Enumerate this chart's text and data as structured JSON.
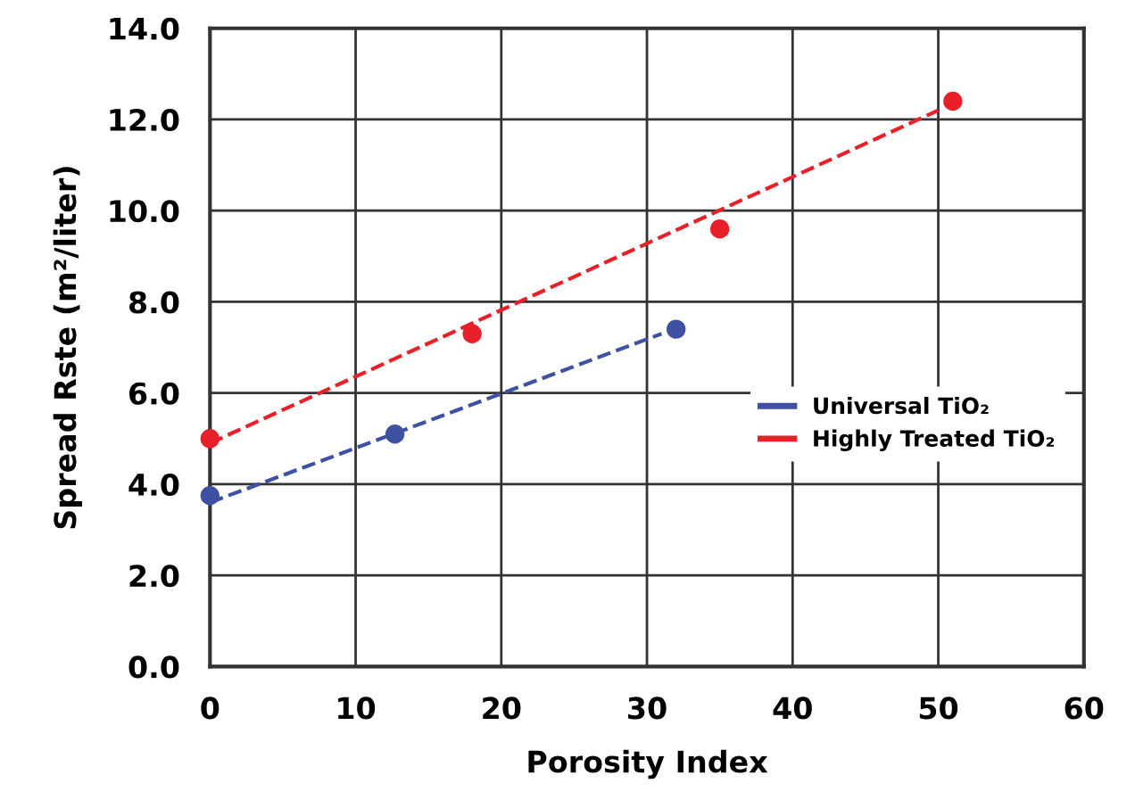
{
  "chart_data": {
    "type": "scatter",
    "xlabel": "Porosity Index",
    "ylabel": "Spread Rste (m²/liter)",
    "xlim": [
      0,
      60
    ],
    "xticks": [
      0,
      10,
      20,
      30,
      40,
      50,
      60
    ],
    "ylim": [
      0,
      14
    ],
    "yticks": [
      {
        "value": 0,
        "label": "0.0"
      },
      {
        "value": 2,
        "label": "2.0"
      },
      {
        "value": 4,
        "label": "4.0"
      },
      {
        "value": 6,
        "label": "6.0"
      },
      {
        "value": 8,
        "label": "8.0"
      },
      {
        "value": 10,
        "label": "10.0"
      },
      {
        "value": 12,
        "label": "12.0"
      },
      {
        "value": 14,
        "label": "14.0"
      }
    ],
    "grid": true,
    "legend": "right",
    "marker": "circle",
    "series": [
      {
        "color": "#3f51a3",
        "x": [
          0,
          12.7,
          32.0
        ],
        "values": [
          3.75,
          5.1,
          7.4
        ]
      },
      {
        "color": "#e8202a",
        "x": [
          0,
          18.0,
          35.0,
          51.0
        ],
        "values": [
          5.0,
          7.3,
          9.6,
          12.4
        ]
      },
      {
        "type": "line",
        "name": "Universal TiO₂",
        "color": "#3f51a3",
        "marker": "none",
        "line_style": "dashed",
        "x": [
          0,
          31.0
        ],
        "values": [
          3.6,
          7.3
        ]
      },
      {
        "type": "line",
        "name": "Highly Treated TiO₂",
        "color": "#e8202a",
        "marker": "none",
        "line_style": "dashed",
        "x": [
          0,
          50.0
        ],
        "values": [
          4.9,
          12.2
        ]
      }
    ]
  }
}
